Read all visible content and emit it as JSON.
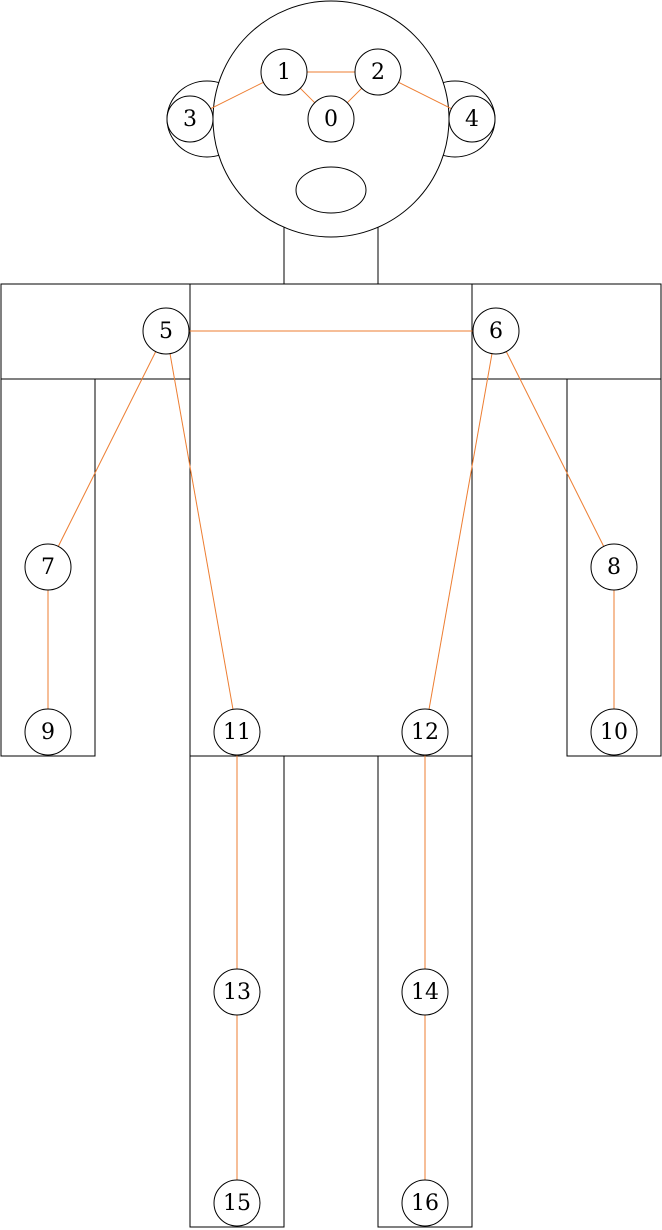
{
  "keypoints": [
    {
      "id": 0,
      "label": "0"
    },
    {
      "id": 1,
      "label": "1"
    },
    {
      "id": 2,
      "label": "2"
    },
    {
      "id": 3,
      "label": "3"
    },
    {
      "id": 4,
      "label": "4"
    },
    {
      "id": 5,
      "label": "5"
    },
    {
      "id": 6,
      "label": "6"
    },
    {
      "id": 7,
      "label": "7"
    },
    {
      "id": 8,
      "label": "8"
    },
    {
      "id": 9,
      "label": "9"
    },
    {
      "id": 10,
      "label": "10"
    },
    {
      "id": 11,
      "label": "11"
    },
    {
      "id": 12,
      "label": "12"
    },
    {
      "id": 13,
      "label": "13"
    },
    {
      "id": 14,
      "label": "14"
    },
    {
      "id": 15,
      "label": "15"
    },
    {
      "id": 16,
      "label": "16"
    }
  ],
  "connections": [
    [
      1,
      0
    ],
    [
      2,
      0
    ],
    [
      1,
      2
    ],
    [
      1,
      3
    ],
    [
      2,
      4
    ],
    [
      5,
      6
    ],
    [
      5,
      7
    ],
    [
      7,
      9
    ],
    [
      6,
      8
    ],
    [
      8,
      10
    ],
    [
      5,
      11
    ],
    [
      6,
      12
    ],
    [
      11,
      13
    ],
    [
      13,
      15
    ],
    [
      12,
      14
    ],
    [
      14,
      16
    ]
  ],
  "colors": {
    "bone": "#ED7D31",
    "outline": "#000000",
    "background": "#FFFFFF"
  }
}
